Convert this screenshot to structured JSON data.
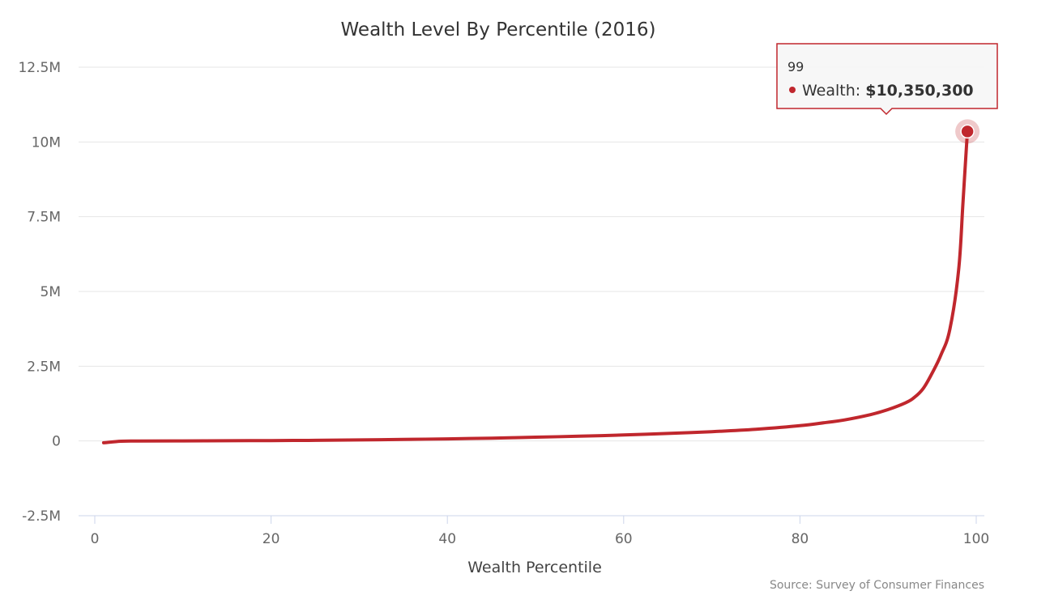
{
  "chart_data": {
    "type": "line",
    "title": "Wealth Level By Percentile (2016)",
    "xlabel": "Wealth Percentile",
    "ylabel": "",
    "credit": "Source: Survey of Consumer Finances",
    "xlim": [
      0,
      100
    ],
    "ylim": [
      -2500000,
      12500000
    ],
    "x_ticks": [
      0,
      20,
      40,
      60,
      80,
      100
    ],
    "x_tick_labels": [
      "0",
      "20",
      "40",
      "60",
      "80",
      "100"
    ],
    "y_ticks": [
      -2500000,
      0,
      2500000,
      5000000,
      7500000,
      10000000,
      12500000
    ],
    "y_tick_labels": [
      "-2.5M",
      "0",
      "2.5M",
      "5M",
      "7.5M",
      "10M",
      "12.5M"
    ],
    "grid": true,
    "colors": {
      "series": "#c0272d",
      "grid": "#e6e6e6",
      "axis": "#ccd6eb"
    },
    "series": [
      {
        "name": "Wealth",
        "x": [
          1,
          3,
          5,
          10,
          15,
          20,
          25,
          30,
          35,
          40,
          45,
          50,
          55,
          60,
          65,
          70,
          75,
          80,
          83,
          85,
          88,
          90,
          92,
          93,
          94,
          95,
          96,
          97,
          98,
          98.5,
          99
        ],
        "y": [
          -60000,
          -10000,
          0,
          3000,
          7000,
          13000,
          22000,
          35000,
          52000,
          70000,
          95000,
          125000,
          160000,
          200000,
          250000,
          310000,
          390000,
          510000,
          620000,
          700000,
          880000,
          1050000,
          1280000,
          1460000,
          1760000,
          2270000,
          2880000,
          3730000,
          5700000,
          8000000,
          10350300
        ]
      }
    ],
    "tooltip": {
      "x_label": "99",
      "series_name": "Wealth: ",
      "value_label": "$10,350,300"
    }
  }
}
